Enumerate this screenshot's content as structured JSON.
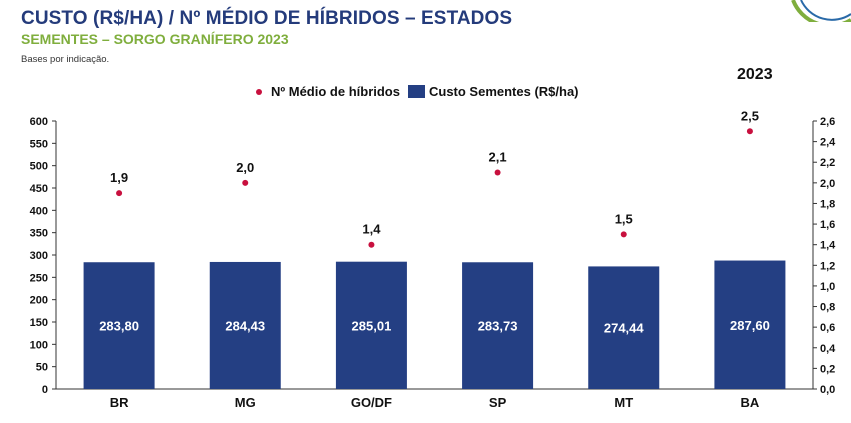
{
  "header": {
    "title": "CUSTO (R$/HA) / Nº MÉDIO DE HÍBRIDOS – ESTADOS",
    "subtitle": "SEMENTES – SORGO GRANÍFERO 2023",
    "note": "Bases por indicação."
  },
  "colors": {
    "title": "#243b7b",
    "subtitle": "#7fae3d",
    "bar": "#243f83",
    "dot": "#c8103e"
  },
  "chart_data": {
    "type": "bar",
    "year_label": "2023",
    "categories": [
      "BR",
      "MG",
      "GO/DF",
      "SP",
      "MT",
      "BA"
    ],
    "series": [
      {
        "name": "Custo Sementes (R$/ha)",
        "kind": "bar",
        "axis": "left",
        "values": [
          283.8,
          284.43,
          285.01,
          283.73,
          274.44,
          287.6
        ],
        "labels": [
          "283,80",
          "284,43",
          "285,01",
          "283,73",
          "274,44",
          "287,60"
        ]
      },
      {
        "name": "Nº Médio de híbridos",
        "kind": "dot",
        "axis": "right",
        "values": [
          1.9,
          2.0,
          1.4,
          2.1,
          1.5,
          2.5
        ],
        "labels": [
          "1,9",
          "2,0",
          "1,4",
          "2,1",
          "1,5",
          "2,5"
        ]
      }
    ],
    "left_axis": {
      "ylim": [
        0,
        600
      ],
      "ticks": [
        "0",
        "50",
        "100",
        "150",
        "200",
        "250",
        "300",
        "350",
        "400",
        "450",
        "500",
        "550",
        "600"
      ]
    },
    "right_axis": {
      "ylim": [
        0,
        2.6
      ],
      "ticks": [
        "0,0",
        "0,2",
        "0,4",
        "0,6",
        "0,8",
        "1,0",
        "1,2",
        "1,4",
        "1,6",
        "1,8",
        "2,0",
        "2,2",
        "2,4",
        "2,6"
      ]
    },
    "legend": [
      {
        "label": "Nº Médio de híbridos",
        "marker": "dot"
      },
      {
        "label": "Custo Sementes (R$/ha)",
        "marker": "square"
      }
    ],
    "grid": false,
    "legend_position": "top-center"
  }
}
